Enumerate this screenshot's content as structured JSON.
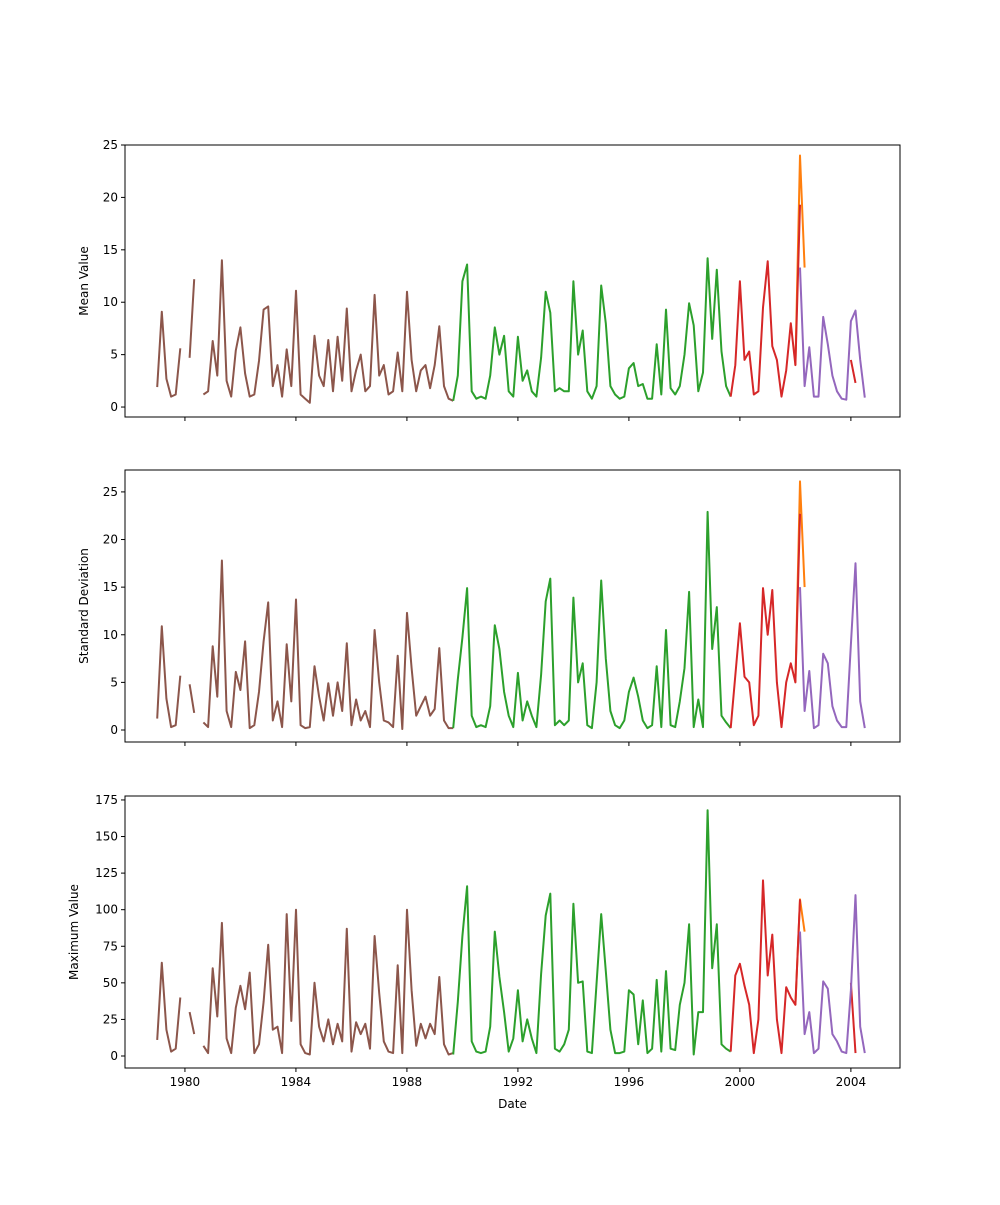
{
  "chart_data": {
    "type": "line",
    "xlabel": "Date",
    "xlim": [
      1977.84,
      2005.77
    ],
    "xticks": [
      1980,
      1984,
      1988,
      1992,
      1996,
      2000,
      2004
    ],
    "xtick_labels": [
      "1980",
      "1984",
      "1988",
      "1992",
      "1996",
      "2000",
      "2004"
    ],
    "step_years": 0.1667,
    "panels": [
      {
        "key": "mean",
        "ylabel": "Mean Value",
        "ylim": [
          -0.95,
          25
        ],
        "yticks": [
          0,
          5,
          10,
          15,
          20,
          25
        ]
      },
      {
        "key": "std",
        "ylabel": "Standard Deviation",
        "ylim": [
          -1.26,
          27.3
        ],
        "yticks": [
          0,
          5,
          10,
          15,
          20,
          25
        ]
      },
      {
        "key": "max",
        "ylabel": "Maximum Value",
        "ylim": [
          -8.2,
          177.7
        ],
        "yticks": [
          0,
          25,
          50,
          75,
          100,
          125,
          150,
          175
        ]
      }
    ],
    "series": [
      {
        "name": "orange",
        "color": "#ff7f0e",
        "start": 2002.0,
        "mean": [
          4.0,
          24.0,
          13.3
        ],
        "std": [
          5.0,
          26.1,
          15.0
        ],
        "max": [
          35,
          107,
          85
        ]
      },
      {
        "name": "brown",
        "color": "#8c564b",
        "start": 1979.0,
        "mean": [
          1.9,
          9.1,
          2.7,
          1.0,
          1.2,
          5.6,
          null,
          4.7,
          12.2,
          null,
          1.2,
          1.5,
          6.3,
          3.0,
          14.0,
          2.5,
          1.0,
          5.4,
          7.6,
          3.2,
          1.0,
          1.2,
          4.4,
          9.3,
          9.6,
          2.0,
          4.0,
          1.0,
          5.5,
          2.0,
          11.1,
          1.2,
          0.8,
          0.4,
          6.8,
          3.0,
          2.0,
          6.4,
          1.5,
          6.7,
          2.5,
          9.4,
          1.5,
          3.5,
          5.0,
          1.5,
          2.0,
          10.7,
          3.0,
          4.0,
          1.2,
          1.5,
          5.2,
          1.5,
          11.0,
          4.5,
          1.5,
          3.5,
          4.0,
          1.8,
          4.0,
          7.7,
          2.0,
          0.8,
          0.6
        ],
        "std": [
          1.2,
          10.9,
          3.3,
          0.3,
          0.5,
          5.7,
          null,
          4.8,
          1.8,
          null,
          0.8,
          0.3,
          8.8,
          3.5,
          17.8,
          2.0,
          0.3,
          6.1,
          4.2,
          9.3,
          0.2,
          0.5,
          4.0,
          9.3,
          13.4,
          1.0,
          3.0,
          0.3,
          9.0,
          3.0,
          13.7,
          0.5,
          0.2,
          0.3,
          6.7,
          3.5,
          1.0,
          4.9,
          1.5,
          5.0,
          2.0,
          9.1,
          0.5,
          3.2,
          1.0,
          2.0,
          0.3,
          10.5,
          5.0,
          1.0,
          0.8,
          0.3,
          7.8,
          0.1,
          12.3,
          6.5,
          1.5,
          2.5,
          3.5,
          1.5,
          2.2,
          8.6,
          1.0,
          0.2,
          0.2
        ],
        "max": [
          11,
          63.8,
          18,
          3,
          5,
          40,
          null,
          30,
          15,
          null,
          7,
          2,
          60,
          27,
          91,
          12,
          2,
          33,
          48,
          32,
          57,
          2,
          8,
          37,
          76,
          18,
          20,
          2,
          97,
          24,
          100,
          8,
          2,
          1,
          50,
          20,
          10,
          25,
          8,
          22,
          10,
          87,
          3,
          23,
          15,
          22,
          5,
          82,
          43,
          10,
          3,
          2,
          62,
          2,
          100,
          45,
          7,
          22,
          12,
          22,
          15,
          54,
          8,
          1,
          2
        ]
      },
      {
        "name": "green",
        "color": "#2ca02c",
        "start": 1989.667,
        "mean": [
          0.6,
          3.0,
          12.0,
          13.6,
          1.5,
          0.8,
          1.0,
          0.8,
          3.0,
          7.6,
          5.0,
          6.8,
          1.5,
          1.0,
          6.7,
          2.5,
          3.5,
          1.5,
          1.0,
          4.7,
          11.0,
          9.0,
          1.5,
          1.8,
          1.5,
          1.5,
          12.0,
          5.0,
          7.3,
          1.5,
          0.8,
          2.0,
          11.6,
          8.0,
          2.0,
          1.2,
          0.8,
          1.0,
          3.7,
          4.2,
          2.0,
          2.2,
          0.8,
          0.8,
          6.0,
          1.2,
          9.3,
          1.8,
          1.2,
          2.0,
          5.0,
          9.9,
          7.8,
          1.5,
          3.3,
          14.2,
          6.5,
          13.1,
          5.3,
          2.0,
          1.0
        ],
        "std": [
          0.2,
          5.3,
          9.7,
          14.9,
          1.5,
          0.3,
          0.5,
          0.3,
          2.5,
          11.0,
          8.5,
          4.0,
          1.5,
          0.3,
          6.0,
          1.0,
          3.0,
          1.5,
          0.3,
          5.8,
          13.5,
          15.9,
          0.5,
          1.0,
          0.5,
          1.0,
          13.9,
          5.0,
          7.0,
          0.5,
          0.2,
          5.0,
          15.7,
          7.5,
          2.0,
          0.5,
          0.2,
          1.0,
          4.0,
          5.5,
          3.5,
          1.0,
          0.2,
          0.5,
          6.7,
          0.3,
          10.5,
          0.5,
          0.3,
          3.0,
          6.5,
          14.5,
          0.3,
          3.2,
          0.3,
          22.9,
          8.5,
          12.9,
          1.5,
          0.8,
          0.2
        ],
        "max": [
          1,
          37,
          82,
          116,
          10,
          3,
          2,
          3,
          20,
          85,
          54,
          30,
          3,
          12,
          45,
          10,
          25,
          12,
          2,
          56,
          96,
          111,
          5,
          3,
          8,
          18,
          104,
          50,
          51,
          3,
          2,
          50,
          97,
          58,
          18,
          2,
          2,
          3,
          45,
          42,
          8,
          38,
          2,
          5,
          52,
          3,
          58,
          5,
          4,
          35,
          50,
          90,
          1,
          30,
          30,
          168,
          60,
          90,
          8,
          5,
          3
        ]
      },
      {
        "name": "red",
        "color": "#d62728",
        "start": 1999.667,
        "mean": [
          1.0,
          4.0,
          12.0,
          4.5,
          5.3,
          1.2,
          1.5,
          9.5,
          13.9,
          5.8,
          4.5,
          1.0,
          3.5,
          8.0,
          4.0,
          19.3
        ],
        "std": [
          0.2,
          5.7,
          11.2,
          5.6,
          5.0,
          0.5,
          1.5,
          14.9,
          10.0,
          14.7,
          5.0,
          0.3,
          5.0,
          7.0,
          5.0,
          22.7
        ],
        "max": [
          3,
          55,
          63,
          48,
          35,
          2,
          25,
          120,
          55,
          83,
          25,
          2,
          47,
          40,
          35,
          107
        ]
      },
      {
        "name": "red-tail",
        "color": "#d62728",
        "start": 2004.0,
        "mean": [
          4.5,
          2.3
        ],
        "std": [
          null,
          null
        ],
        "max": [
          50,
          2
        ]
      },
      {
        "name": "purple",
        "color": "#9467bd",
        "start": 2002.167,
        "mean": [
          13.3,
          2.0,
          5.7,
          1.0,
          1.0,
          8.6,
          6.0,
          3.0,
          1.5,
          0.8,
          0.7,
          8.2,
          9.2,
          4.5,
          0.9
        ],
        "std": [
          15.0,
          2.0,
          6.2,
          0.2,
          0.5,
          8.0,
          7.0,
          2.5,
          1.0,
          0.3,
          0.3,
          9.0,
          17.5,
          3.0,
          0.2
        ],
        "max": [
          85,
          15,
          30,
          2,
          5,
          51,
          46,
          15,
          10,
          3,
          2,
          45,
          110,
          20,
          2
        ]
      }
    ]
  }
}
